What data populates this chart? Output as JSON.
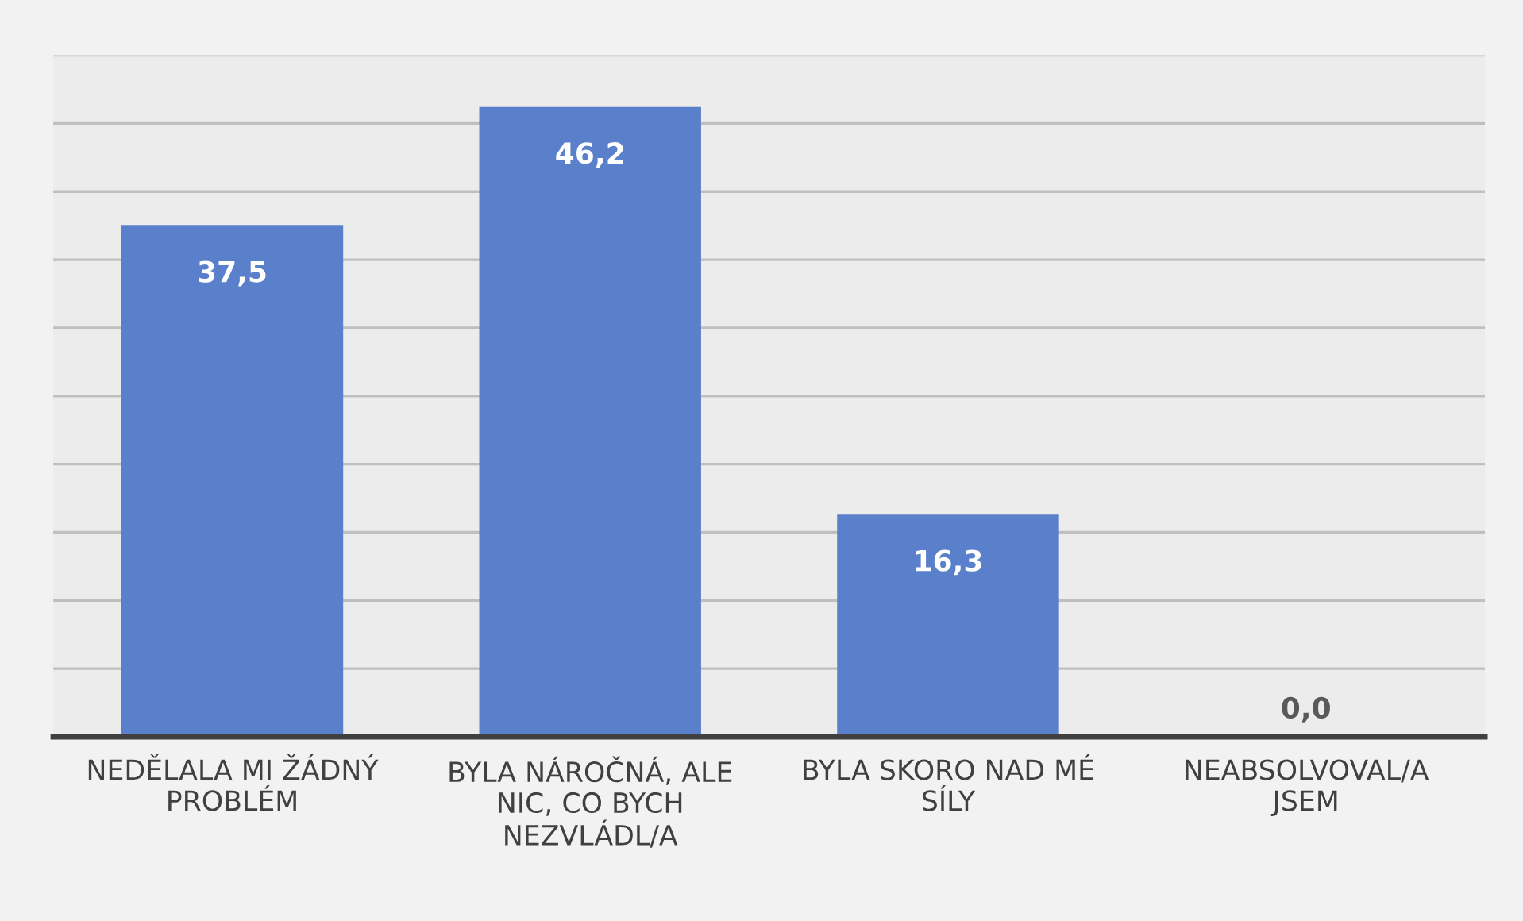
{
  "chart_data": {
    "type": "bar",
    "categories": [
      "NEDĚLALA MI ŽÁDNÝ PROBLÉM",
      "BYLA NÁROČNÁ, ALE NIC, CO BYCH NEZVLÁDL/A",
      "BYLA SKORO NAD MÉ SÍLY",
      "NEABSOLVOVAL/A JSEM"
    ],
    "values": [
      37.5,
      46.2,
      16.3,
      0.0
    ],
    "value_labels": [
      "37,5",
      "46,2",
      "16,3",
      "0,0"
    ],
    "color": "#5b80cb",
    "ylim": [
      0,
      50
    ],
    "yticks": [
      {
        "value": 0,
        "label": null
      },
      {
        "value": 5,
        "label": null
      },
      {
        "value": 10,
        "label": null
      },
      {
        "value": 15,
        "label": null
      },
      {
        "value": 20,
        "label": null
      },
      {
        "value": 25,
        "label": null
      },
      {
        "value": 30,
        "label": null
      },
      {
        "value": 35,
        "label": null
      },
      {
        "value": 40,
        "label": null
      },
      {
        "value": 45,
        "label": null
      },
      {
        "value": 50,
        "label": null
      }
    ],
    "grid": "y",
    "tick_labels": "x"
  }
}
